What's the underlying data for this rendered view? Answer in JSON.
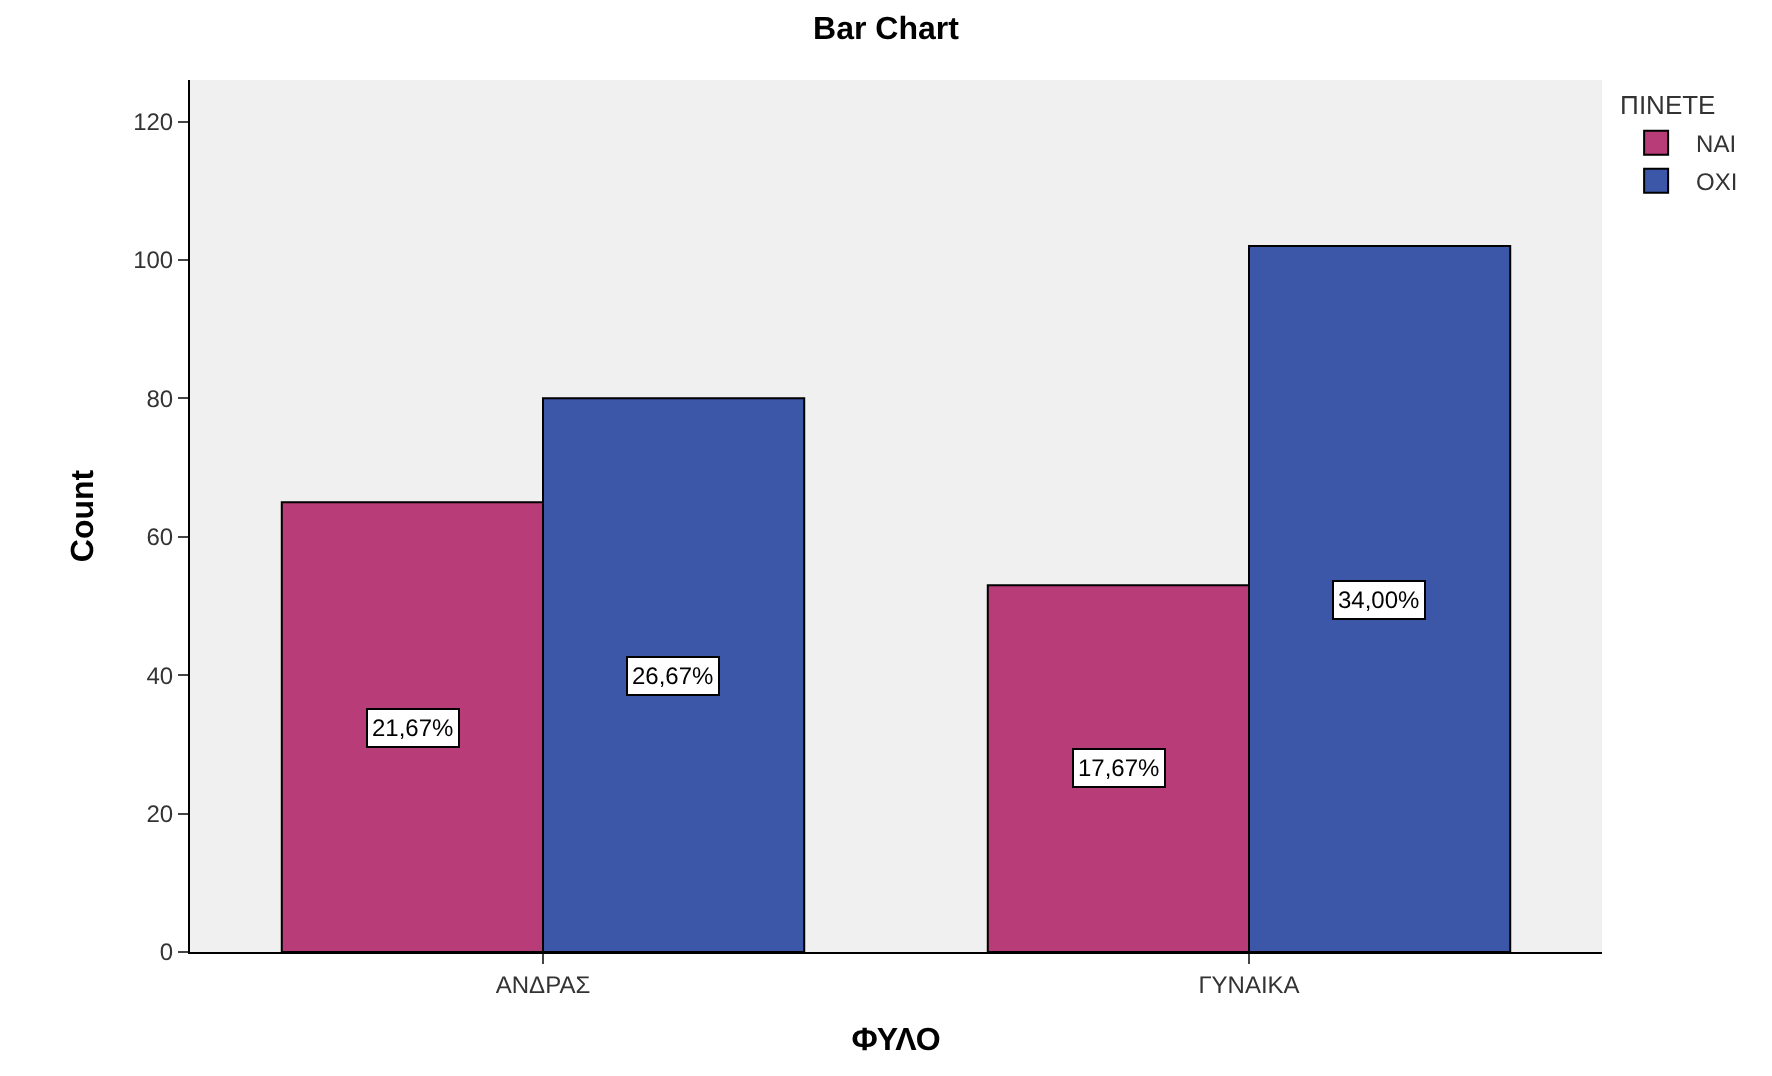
{
  "chart_data": {
    "type": "bar",
    "title": "Bar Chart",
    "xlabel": "ΦΥΛΟ",
    "ylabel": "Count",
    "legend_title": "ΠΙΝΕΤΕ",
    "categories": [
      "ΑΝΔΡΑΣ",
      "ΓΥΝΑΙΚΑ"
    ],
    "series": [
      {
        "name": "ΝΑΙ",
        "color": "#b83c78",
        "values": [
          65,
          53
        ]
      },
      {
        "name": "ΟΧΙ",
        "color": "#3c56a8",
        "values": [
          80,
          102
        ]
      }
    ],
    "annotations": [
      "21,67%",
      "26,67%",
      "17,67%",
      "34,00%"
    ],
    "ylim": [
      0,
      126
    ],
    "yticks": [
      0,
      20,
      40,
      60,
      80,
      100,
      120
    ],
    "grid": false,
    "legend": "top right"
  }
}
